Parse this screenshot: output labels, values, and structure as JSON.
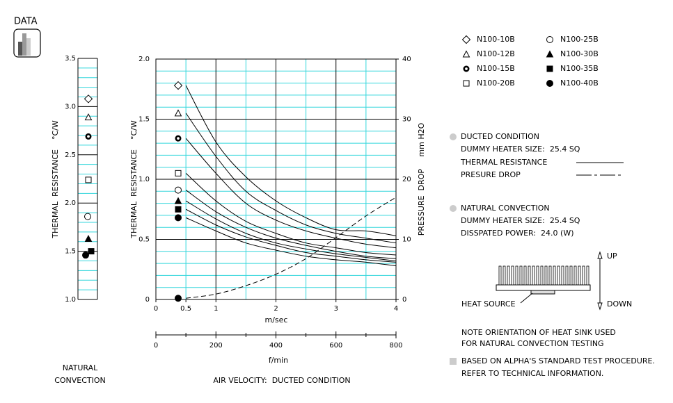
{
  "header": {
    "title": "DATA"
  },
  "chart_data": [
    {
      "type": "scatter",
      "ylabel": "THERMAL  RESISTANCE    °C/W",
      "footer": [
        "NATURAL",
        "CONVECTION"
      ],
      "ylim": [
        1.0,
        3.5
      ],
      "yticks": [
        {
          "value": 1.0,
          "label": "1.0"
        },
        1.5,
        {
          "value": 2.0,
          "label": "2.0"
        },
        2.5,
        {
          "value": 3.0,
          "label": "3.0"
        },
        3.5
      ],
      "minor_yticks": [
        1.1,
        1.2,
        1.3,
        1.4,
        1.6,
        1.7,
        1.8,
        1.9,
        2.1,
        2.2,
        2.3,
        2.4,
        2.6,
        2.7,
        2.8,
        2.9,
        3.1,
        3.2,
        3.3,
        3.4
      ],
      "markers": [
        "diamond-open",
        "triangle-open",
        "circle-bold",
        "square-open",
        "circle-open",
        "triangle-filled",
        "square-filled",
        "circle-filled"
      ],
      "values": [
        3.08,
        2.89,
        2.69,
        2.24,
        1.86,
        1.63,
        1.5,
        1.46
      ],
      "color": "#000000"
    },
    {
      "type": "line",
      "ylabel": "THERMAL  RESISTANCE    °C/W",
      "y2label": "PRESSURE  DROP     mm H2O",
      "xlabel": "m/sec",
      "x2label": "f/min",
      "footer": "AIR VELOCITY:  DUCTED CONDITION",
      "x": [
        0.5,
        1,
        1.5,
        2,
        2.5,
        3,
        3.5,
        4
      ],
      "xlim": [
        0,
        4
      ],
      "xticks": [
        0,
        0.5,
        1,
        2,
        3,
        4
      ],
      "minor_xticks": [
        0.5,
        1.5,
        2.5,
        3.5
      ],
      "ylim": [
        0,
        2.0
      ],
      "yticks": [
        0,
        0.5,
        {
          "value": 1.0,
          "label": "1.0"
        },
        1.5,
        {
          "value": 2.0,
          "label": "2.0"
        }
      ],
      "minor_yticks": [
        0.1,
        0.2,
        0.3,
        0.4,
        0.6,
        0.7,
        0.8,
        0.9,
        1.1,
        1.2,
        1.3,
        1.4,
        1.6,
        1.7,
        1.8,
        1.9
      ],
      "y2lim": [
        0,
        40
      ],
      "y2ticks": [
        0,
        10,
        20,
        30,
        40
      ],
      "x2lim": [
        0,
        800
      ],
      "x2ticks": [
        0,
        200,
        400,
        600,
        800
      ],
      "x2_minor_ticks": [
        100,
        300,
        500,
        700
      ],
      "grid": true,
      "grid_color": "#33d6dc",
      "series": [
        {
          "name": "N100-10B",
          "marker": "diamond-open",
          "color": "#000000",
          "values": [
            1.78,
            1.31,
            1.02,
            0.82,
            0.68,
            0.58,
            0.57,
            0.53
          ]
        },
        {
          "name": "N100-12B",
          "marker": "triangle-open",
          "color": "#000000",
          "values": [
            1.55,
            1.19,
            0.9,
            0.74,
            0.62,
            0.55,
            0.51,
            0.47
          ]
        },
        {
          "name": "N100-15B",
          "marker": "circle-bold",
          "color": "#000000",
          "values": [
            1.34,
            1.05,
            0.8,
            0.66,
            0.57,
            0.51,
            0.46,
            0.43
          ]
        },
        {
          "name": "N100-20B",
          "marker": "square-open",
          "color": "#000000",
          "values": [
            1.05,
            0.82,
            0.65,
            0.55,
            0.47,
            0.43,
            0.39,
            0.37
          ]
        },
        {
          "name": "N100-25B",
          "marker": "circle-open",
          "color": "#000000",
          "values": [
            0.91,
            0.73,
            0.6,
            0.51,
            0.45,
            0.4,
            0.36,
            0.34
          ]
        },
        {
          "name": "N100-30B",
          "marker": "triangle-filled",
          "color": "#000000",
          "values": [
            0.82,
            0.67,
            0.55,
            0.47,
            0.42,
            0.38,
            0.35,
            0.32
          ]
        },
        {
          "name": "N100-35B",
          "marker": "square-filled",
          "color": "#000000",
          "values": [
            0.75,
            0.62,
            0.52,
            0.45,
            0.39,
            0.36,
            0.33,
            0.31
          ]
        },
        {
          "name": "N100-40B",
          "marker": "circle-filled",
          "color": "#000000",
          "values": [
            0.68,
            0.57,
            0.47,
            0.41,
            0.36,
            0.33,
            0.31,
            0.28
          ]
        },
        {
          "name": "PRESURE DROP",
          "axis": "y2",
          "style": "dashed",
          "marker": "circle-filled",
          "color": "#000000",
          "values": [
            0.2,
            0.9,
            2.3,
            4.2,
            6.8,
            10.3,
            13.9,
            17.0
          ]
        }
      ]
    }
  ],
  "notes": {
    "ducted": {
      "title": "DUCTED CONDITION",
      "heater": "DUMMY HEATER SIZE:  25.4 SQ",
      "thermal_label": "THERMAL RESISTANCE"
    },
    "natural": {
      "title": "NATURAL CONVECTION",
      "heater": "DUMMY HEATER SIZE:  25.4 SQ",
      "power": "DISSPATED POWER:  24.0 (W)"
    },
    "diagram": {
      "up": "UP",
      "down": "DOWN",
      "source": "HEAT SOURCE"
    },
    "orientation": [
      "NOTE ORIENTATION OF HEAT SINK USED",
      "FOR NATURAL CONVECTION TESTING"
    ],
    "procedure": [
      "BASED ON ALPHA'S STANDARD TEST PROCEDURE.",
      "REFER TO TECHNICAL INFORMATION."
    ]
  }
}
